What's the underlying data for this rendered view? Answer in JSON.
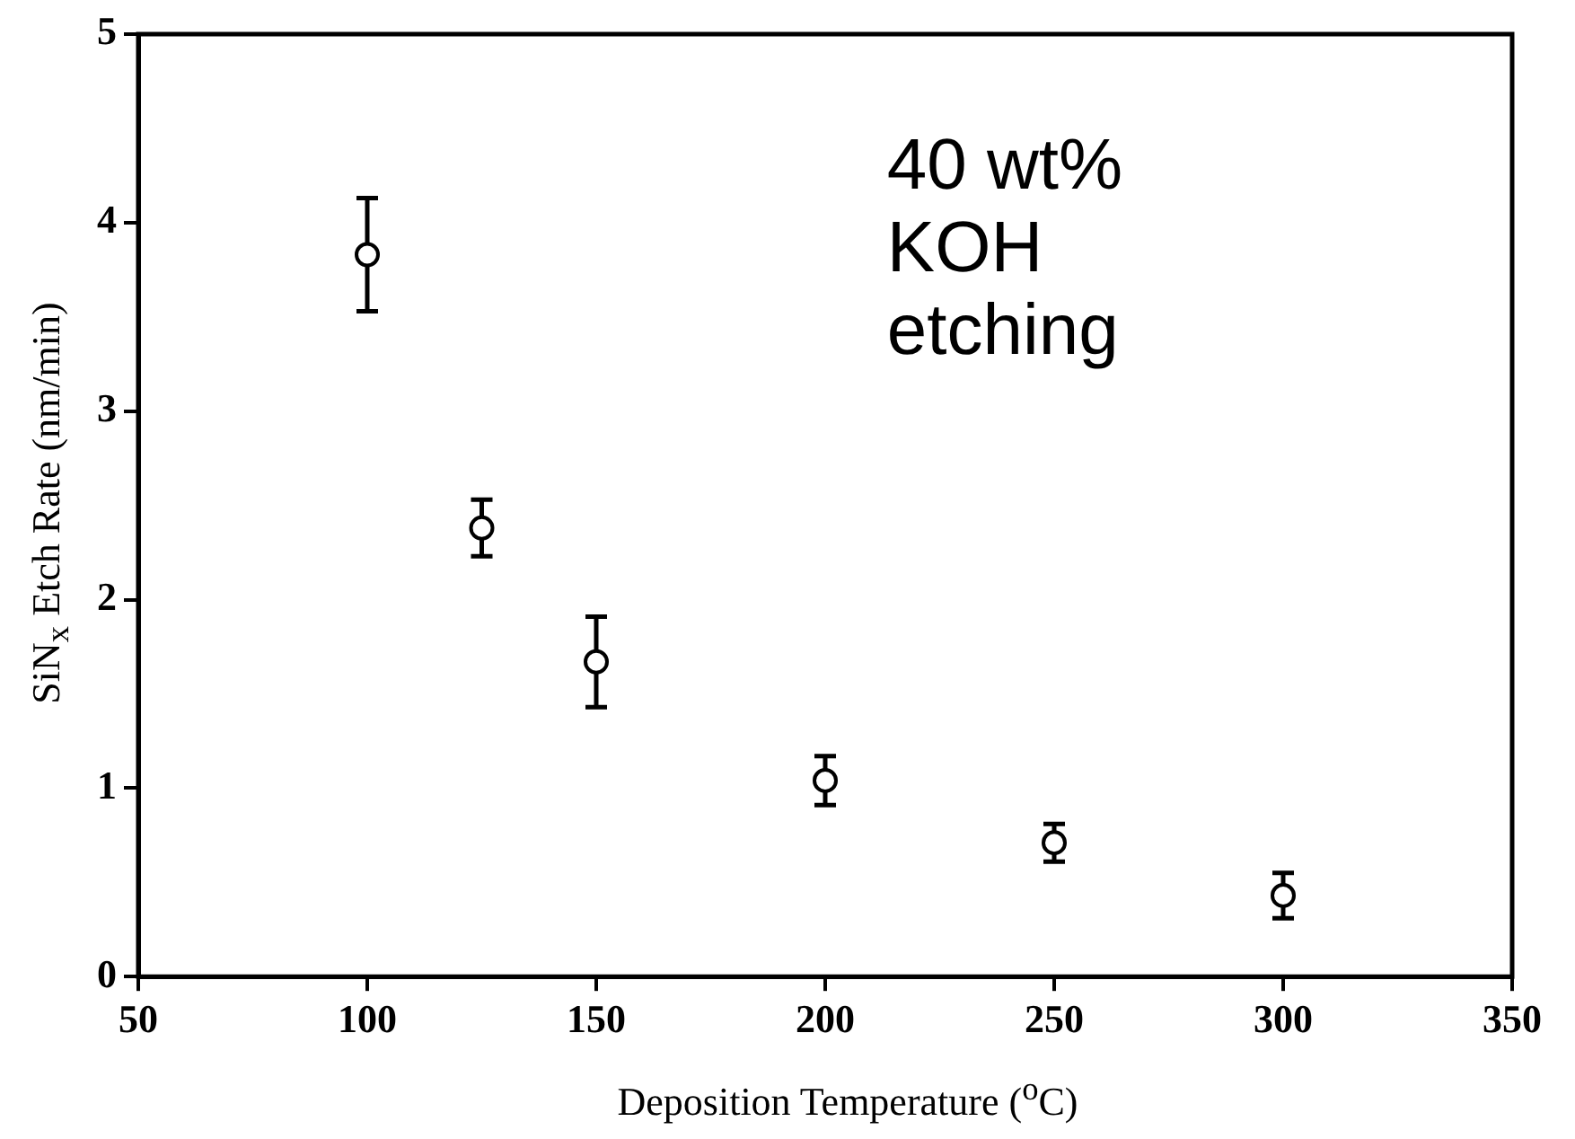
{
  "chart_data": {
    "type": "scatter",
    "xlabel": "Deposition Temperature ($^{o}$C)",
    "ylabel": "SiN$_{x}$ Etch Rate (nm/min)",
    "annotations": [
      "40 wt%\nKOH\netching"
    ],
    "x": [
      100,
      125,
      150,
      200,
      250,
      300
    ],
    "series": [
      {
        "color": "#000000",
        "values": [
          3.83,
          2.38,
          1.67,
          1.04,
          0.71,
          0.43
        ],
        "errors": [
          0.3,
          0.15,
          0.24,
          0.13,
          0.1,
          0.12
        ]
      }
    ],
    "xlim": [
      50,
      350
    ],
    "xticks": [
      50,
      100,
      150,
      200,
      250,
      300,
      350
    ],
    "ylim": [
      0,
      5
    ],
    "yticks": [
      0,
      1,
      2,
      3,
      4,
      5
    ],
    "grid": false,
    "legend": false,
    "marker": "circle"
  }
}
